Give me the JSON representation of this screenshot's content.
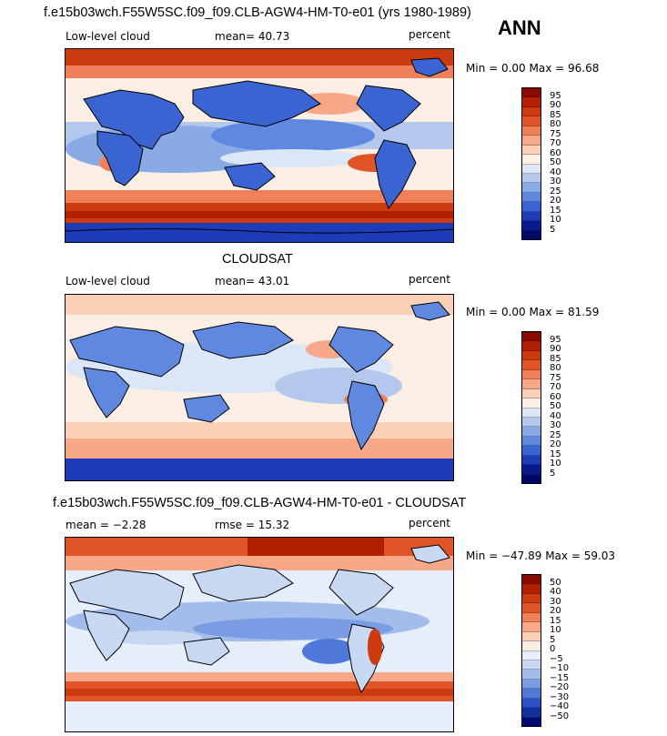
{
  "panel1": {
    "title": "f.e15b03wch.F55W5SC.f09_f09.CLB-AGW4-HM-T0-e01 (yrs 1980-1989)",
    "season": "ANN",
    "field": "Low-level cloud",
    "stat": "mean=  40.73",
    "units": "percent",
    "minmax": "Min =    0.00 Max =  96.68",
    "levels": [
      "95",
      "90",
      "85",
      "80",
      "75",
      "70",
      "60",
      "50",
      "40",
      "30",
      "25",
      "20",
      "15",
      "10",
      "5"
    ]
  },
  "panel2": {
    "title": "CLOUDSAT",
    "field": "Low-level cloud",
    "stat": "mean=  43.01",
    "units": "percent",
    "minmax": "Min =    0.00 Max =  81.59",
    "levels": [
      "95",
      "90",
      "85",
      "80",
      "75",
      "70",
      "60",
      "50",
      "40",
      "30",
      "25",
      "20",
      "15",
      "10",
      "5"
    ]
  },
  "panel3": {
    "title": "f.e15b03wch.F55W5SC.f09_f09.CLB-AGW4-HM-T0-e01 - CLOUDSAT",
    "stat_mean": "mean =  −2.28",
    "stat_rmse": "rmse =  15.32",
    "units": "percent",
    "minmax": "Min = −47.89 Max =  59.03",
    "levels": [
      "50",
      "40",
      "30",
      "20",
      "15",
      "10",
      "5",
      "0",
      "−5",
      "−10",
      "−15",
      "−20",
      "−30",
      "−40",
      "−50"
    ]
  },
  "colors": {
    "abs_scale": [
      "#8b0a00",
      "#b22000",
      "#cc3a10",
      "#e05528",
      "#f0805a",
      "#f7a888",
      "#fbd0b8",
      "#fbeee4",
      "#dbe6f6",
      "#b4c8ee",
      "#8aaae6",
      "#5f88e0",
      "#3a64d2",
      "#1d3cb8",
      "#0a1a8c",
      "#000a66"
    ],
    "diff_scale": [
      "#8b0a00",
      "#b22000",
      "#cc3a10",
      "#e05528",
      "#f0805a",
      "#f7a888",
      "#fbd0b8",
      "#fbeee4",
      "#e6eefa",
      "#c8d8f2",
      "#a2bcec",
      "#7a9ce4",
      "#5078d8",
      "#2a50c4",
      "#1030a0",
      "#000a70"
    ]
  }
}
